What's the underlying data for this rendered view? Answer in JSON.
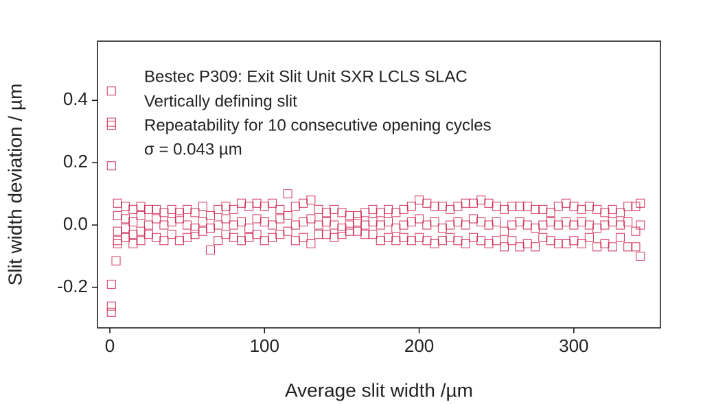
{
  "chart_data": {
    "type": "scatter",
    "annotations": [
      "Bestec P309: Exit Slit Unit SXR LCLS SLAC",
      "Vertically defining slit",
      "Repeatability for 10 consecutive opening cycles",
      "σ = 0.043 µm"
    ],
    "x_label": "Average slit width /µm",
    "y_label": "Slit width deviation / µm",
    "color": "#d0305a",
    "xlim": [
      -8,
      356
    ],
    "ylim": [
      -0.33,
      0.59
    ],
    "xticks": [
      0,
      100,
      200,
      300
    ],
    "yticks": [
      -0.2,
      {
        "value": 0,
        "label": "0.0"
      },
      0.2,
      0.4
    ],
    "x": [
      1,
      1,
      1,
      1,
      1,
      1,
      1,
      4,
      5,
      5,
      5,
      5,
      5,
      10,
      10,
      10,
      10,
      15,
      15,
      15,
      15,
      20,
      20,
      20,
      20,
      25,
      25,
      25,
      30,
      30,
      30,
      35,
      35,
      35,
      40,
      40,
      40,
      45,
      45,
      45,
      50,
      50,
      50,
      55,
      55,
      55,
      60,
      60,
      60,
      65,
      65,
      65,
      70,
      70,
      70,
      75,
      75,
      75,
      80,
      80,
      80,
      85,
      85,
      85,
      90,
      90,
      90,
      95,
      95,
      95,
      100,
      100,
      100,
      105,
      105,
      105,
      110,
      110,
      110,
      115,
      115,
      115,
      120,
      120,
      120,
      125,
      125,
      125,
      130,
      130,
      130,
      135,
      135,
      135,
      140,
      140,
      140,
      145,
      145,
      145,
      150,
      150,
      150,
      155,
      155,
      155,
      160,
      160,
      160,
      165,
      165,
      165,
      170,
      170,
      170,
      175,
      175,
      175,
      180,
      180,
      180,
      185,
      185,
      185,
      190,
      190,
      190,
      195,
      195,
      195,
      200,
      200,
      200,
      205,
      205,
      205,
      210,
      210,
      210,
      215,
      215,
      215,
      220,
      220,
      220,
      225,
      225,
      225,
      230,
      230,
      230,
      235,
      235,
      235,
      240,
      240,
      240,
      245,
      245,
      245,
      250,
      250,
      250,
      255,
      255,
      255,
      260,
      260,
      260,
      265,
      265,
      265,
      270,
      270,
      270,
      275,
      275,
      275,
      280,
      280,
      280,
      285,
      285,
      285,
      290,
      290,
      290,
      295,
      295,
      295,
      300,
      300,
      300,
      305,
      305,
      305,
      310,
      310,
      310,
      315,
      315,
      315,
      320,
      320,
      320,
      325,
      325,
      325,
      330,
      330,
      330,
      335,
      335,
      335,
      340,
      340,
      340,
      343,
      343,
      343
    ],
    "values": [
      0.43,
      0.33,
      0.32,
      0.19,
      -0.19,
      -0.26,
      -0.28,
      -0.115,
      0.07,
      0.03,
      -0.02,
      -0.05,
      -0.06,
      0.06,
      0.02,
      -0.01,
      -0.04,
      0.05,
      0.01,
      -0.03,
      -0.06,
      0.06,
      0.03,
      -0.02,
      -0.05,
      0.05,
      0,
      -0.03,
      0.05,
      0.02,
      -0.04,
      0.04,
      0,
      -0.05,
      0.05,
      0.01,
      -0.03,
      0.04,
      0.02,
      -0.05,
      0.05,
      0,
      -0.04,
      0.04,
      -0.01,
      -0.03,
      0.06,
      0.01,
      -0.02,
      0.03,
      -0.01,
      -0.08,
      0.05,
      0,
      -0.05,
      0.06,
      0.02,
      -0.03,
      0.05,
      0,
      -0.04,
      0.07,
      0.01,
      -0.05,
      0.06,
      -0.01,
      -0.04,
      0.07,
      0.02,
      -0.03,
      0.06,
      0.01,
      -0.05,
      0.07,
      0,
      -0.04,
      0.05,
      0.02,
      -0.03,
      0.1,
      0.03,
      -0.02,
      0.06,
      0,
      -0.05,
      0.07,
      0.01,
      -0.04,
      0.08,
      0.02,
      -0.06,
      0.05,
      0,
      -0.03,
      0.04,
      0.01,
      -0.03,
      0.05,
      0,
      -0.04,
      0.04,
      -0.01,
      -0.03,
      0.03,
      0,
      -0.02,
      0.03,
      0.01,
      -0.02,
      0.04,
      0,
      -0.03,
      0.05,
      0.01,
      -0.03,
      0.04,
      0,
      -0.05,
      0.05,
      0.01,
      -0.04,
      0.04,
      -0.01,
      -0.05,
      0.05,
      0,
      -0.04,
      0.06,
      0.01,
      -0.05,
      0.08,
      0.02,
      -0.04,
      0.07,
      0,
      -0.05,
      0.06,
      0.01,
      -0.06,
      0.06,
      -0.01,
      -0.05,
      0.05,
      0,
      -0.04,
      0.06,
      0.01,
      -0.05,
      0.07,
      0,
      -0.06,
      0.07,
      0.02,
      -0.04,
      0.08,
      0.01,
      -0.05,
      0.07,
      0,
      -0.06,
      0.06,
      0.01,
      -0.05,
      0.05,
      -0.02,
      -0.07,
      0.06,
      0,
      -0.05,
      0.06,
      0.01,
      -0.07,
      0.06,
      0,
      -0.06,
      0.05,
      -0.01,
      -0.07,
      0.05,
      0,
      -0.04,
      0.04,
      0.01,
      -0.05,
      0.06,
      0,
      -0.06,
      0.07,
      0.01,
      -0.06,
      0.06,
      0,
      -0.05,
      0.05,
      0.01,
      -0.06,
      0.06,
      0,
      -0.04,
      0.05,
      -0.01,
      -0.07,
      0.04,
      0,
      -0.06,
      0.05,
      0.01,
      -0.07,
      0.04,
      0,
      -0.04,
      0.06,
      0.01,
      -0.07,
      0.06,
      -0.02,
      -0.07,
      0.07,
      0,
      -0.1
    ]
  }
}
